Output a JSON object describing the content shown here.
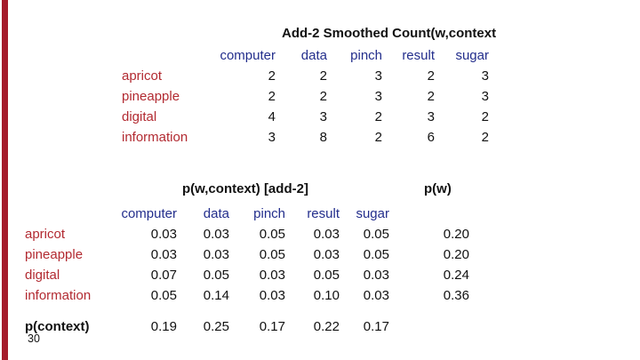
{
  "slide": {
    "page_number": "30",
    "accent_color": "#a51c2c",
    "header_text_color": "#232e8c",
    "row_label_color": "#b22a31"
  },
  "count_table": {
    "title": "Add-2 Smoothed Count(w,context",
    "columns": [
      "computer",
      "data",
      "pinch",
      "result",
      "sugar"
    ],
    "rows": [
      {
        "label": "apricot",
        "values": [
          "2",
          "2",
          "3",
          "2",
          "3"
        ]
      },
      {
        "label": "pineapple",
        "values": [
          "2",
          "2",
          "3",
          "2",
          "3"
        ]
      },
      {
        "label": "digital",
        "values": [
          "4",
          "3",
          "2",
          "3",
          "2"
        ]
      },
      {
        "label": "information",
        "values": [
          "3",
          "8",
          "2",
          "6",
          "2"
        ]
      }
    ]
  },
  "prob_table": {
    "title": "p(w,context) [add-2]",
    "pw_title": "p(w)",
    "columns": [
      "computer",
      "data",
      "pinch",
      "result",
      "sugar"
    ],
    "rows": [
      {
        "label": "apricot",
        "values": [
          "0.03",
          "0.03",
          "0.05",
          "0.03",
          "0.05"
        ],
        "pw": "0.20"
      },
      {
        "label": "pineapple",
        "values": [
          "0.03",
          "0.03",
          "0.05",
          "0.03",
          "0.05"
        ],
        "pw": "0.20"
      },
      {
        "label": "digital",
        "values": [
          "0.07",
          "0.05",
          "0.03",
          "0.05",
          "0.03"
        ],
        "pw": "0.24"
      },
      {
        "label": "information",
        "values": [
          "0.05",
          "0.14",
          "0.03",
          "0.10",
          "0.03"
        ],
        "pw": "0.36"
      }
    ],
    "footer": {
      "label": "p(context)",
      "values": [
        "0.19",
        "0.25",
        "0.17",
        "0.22",
        "0.17"
      ]
    }
  }
}
